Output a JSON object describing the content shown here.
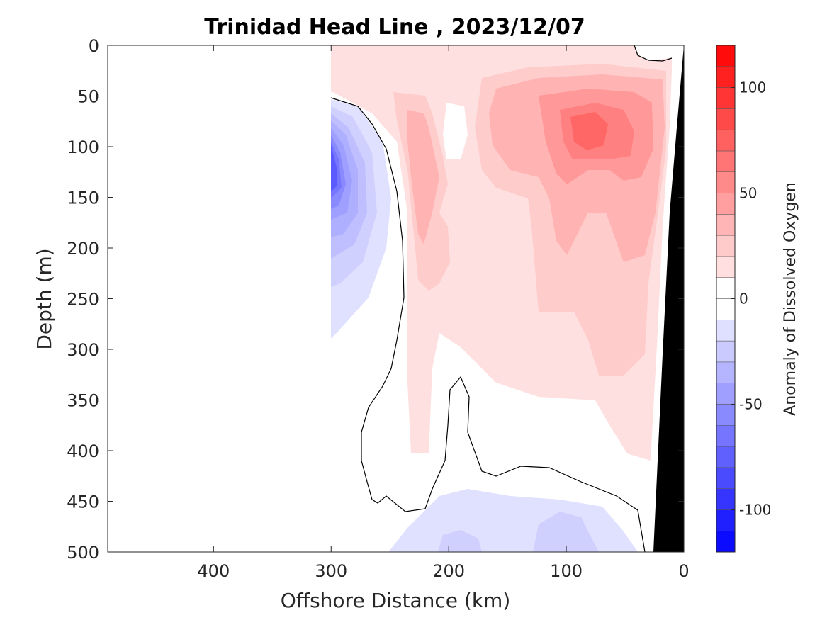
{
  "chart_data": {
    "type": "heatmap",
    "title": "Trinidad Head Line , 2023/12/07",
    "xlabel": "Offshore Distance (km)",
    "ylabel": "Depth (m)",
    "colorbar_label": "Anomaly of Dissolved Oxygen",
    "xlim": [
      490,
      0
    ],
    "ylim": [
      500,
      0
    ],
    "x_ticks": [
      400,
      300,
      200,
      100,
      0
    ],
    "x_tick_labels": [
      "400",
      "300",
      "200",
      "100",
      "0"
    ],
    "y_ticks": [
      0,
      50,
      100,
      150,
      200,
      250,
      300,
      350,
      400,
      450,
      500
    ],
    "y_tick_labels": [
      "0",
      "50",
      "100",
      "150",
      "200",
      "250",
      "300",
      "350",
      "400",
      "450",
      "500"
    ],
    "colorbar_range": [
      -120,
      120
    ],
    "colorbar_step": 10,
    "colorbar_ticks": [
      100,
      50,
      0,
      -50,
      -100
    ],
    "colorbar_tick_labels": [
      "100",
      "50",
      "0",
      "-50",
      "-100"
    ],
    "colormap": {
      "negative": "#0000ff",
      "zero": "#ffffff",
      "positive": "#ff0000"
    },
    "features": [
      {
        "name": "negative-anomaly-nearshore-edge",
        "approx_center": {
          "x_km": 298,
          "depth_m": 160
        },
        "min_value": -90
      },
      {
        "name": "positive-anomaly-core",
        "approx_center": {
          "x_km": 85,
          "depth_m": 85
        },
        "max_value": 70
      },
      {
        "name": "positive-anomaly-band",
        "approx_center": {
          "x_km": 225,
          "depth_m": 190
        },
        "max_value": 40
      },
      {
        "name": "negative-anomaly-deep",
        "approx_center": {
          "x_km": 100,
          "depth_m": 480
        },
        "min_value": -20
      }
    ],
    "bottom_topography": {
      "shelf_x_km": [
        28,
        0
      ],
      "depth_m": [
        500,
        0
      ]
    },
    "grid": false
  }
}
